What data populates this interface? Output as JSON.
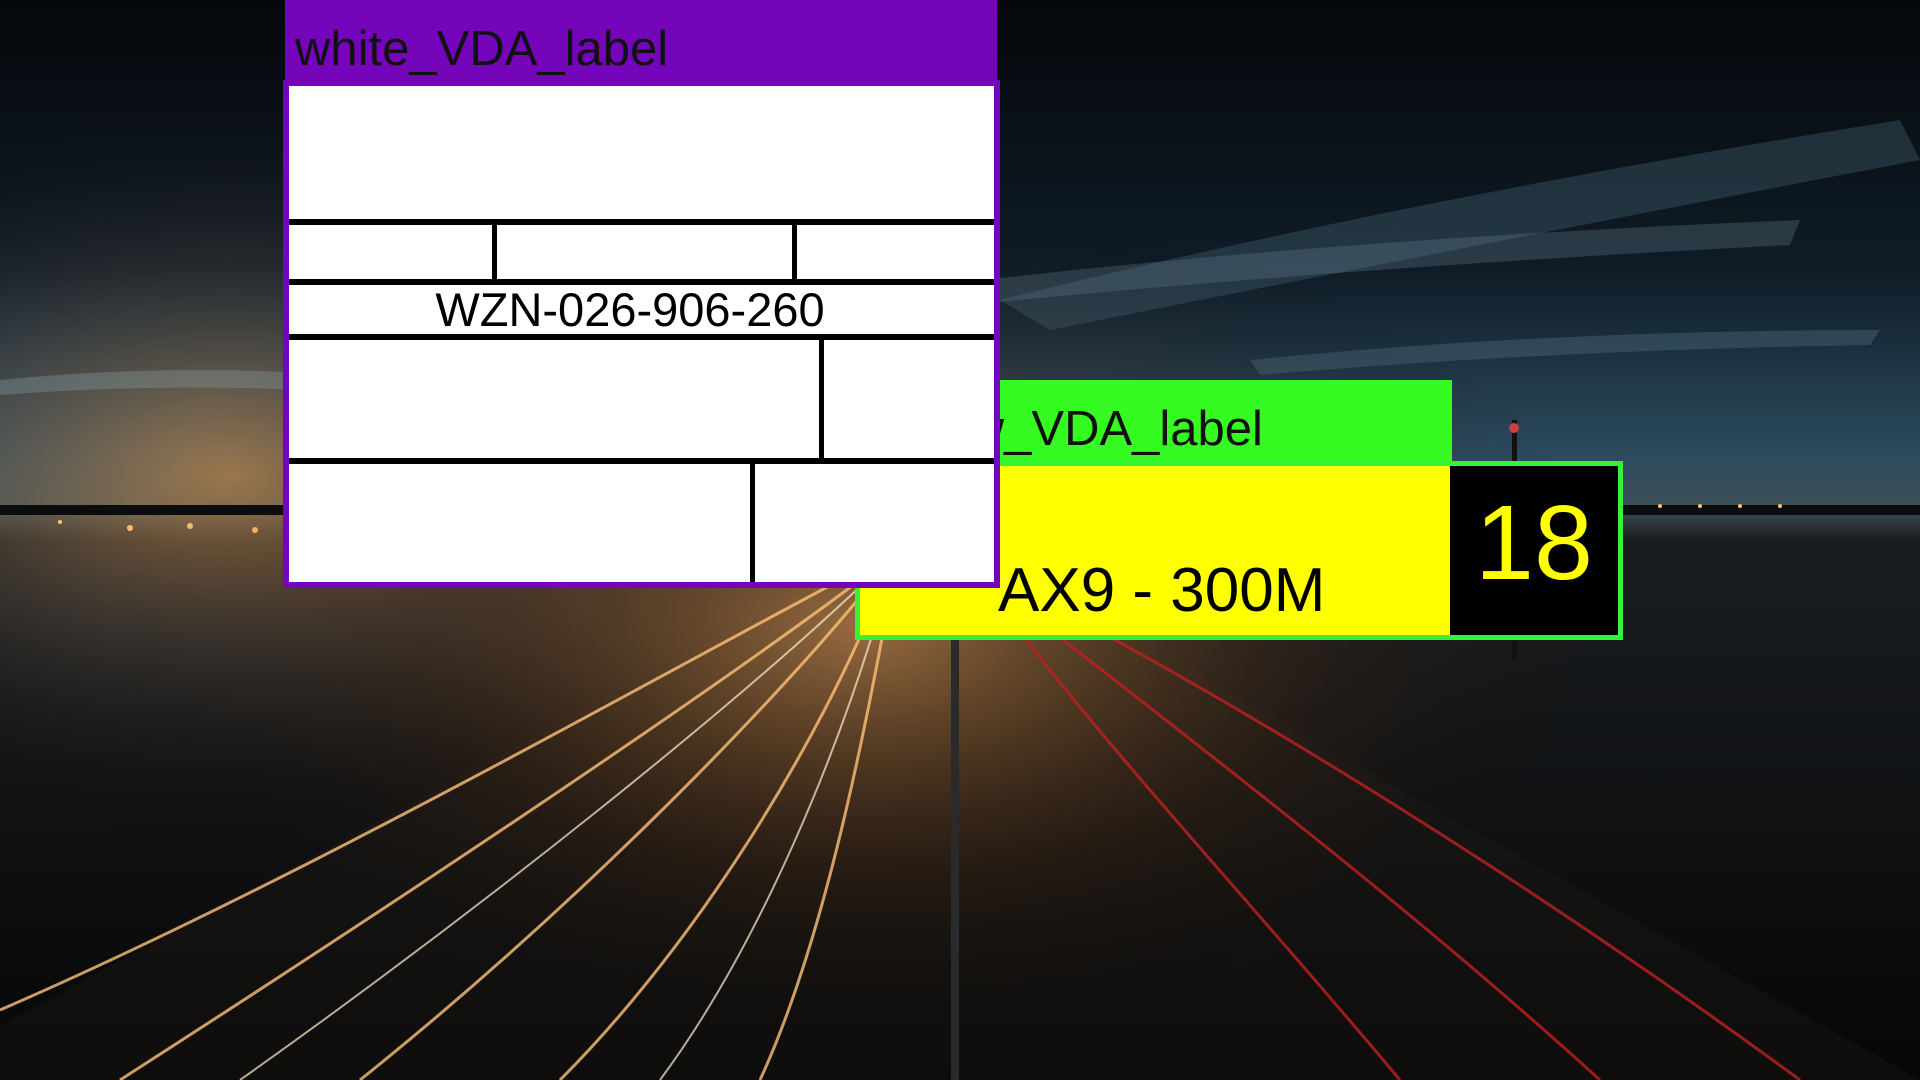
{
  "labels": {
    "yellow": {
      "tag": "yellow_VDA_label",
      "text": "AX9 - 300M",
      "number": "18",
      "tag_color": "#35fb22",
      "fill_color": "#ffff00"
    },
    "white": {
      "tag": "white_VDA_label",
      "code": "WZN-026-906-260",
      "tag_color": "#7505bb",
      "fill_color": "#ffffff"
    }
  }
}
